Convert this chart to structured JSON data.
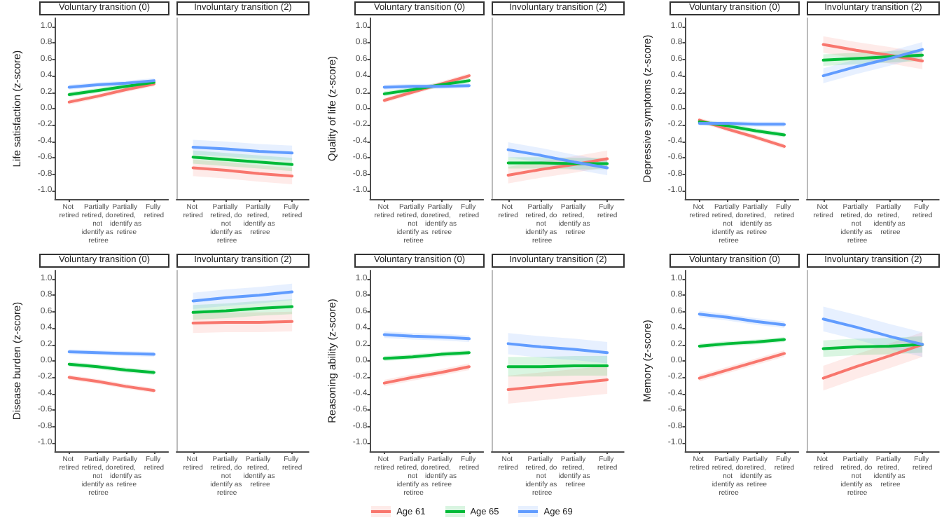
{
  "chart_data": [
    {
      "type": "line",
      "title": "Voluntary transition (0)",
      "ylabel": "Life satisfaction (z-score)",
      "legend": "bottom",
      "categories": [
        "Not retired",
        "Partially retired, do not identify as retiree",
        "Partially retired, identify as retiree",
        "Fully retired"
      ],
      "ylim": [
        -1.1,
        1.1
      ],
      "yticks": [
        {
          "value": -1,
          "label": "-1.0"
        },
        -0.8,
        -0.6,
        -0.4,
        -0.2,
        {
          "value": 0,
          "label": "0.0"
        },
        0.2,
        0.4,
        0.6,
        0.8,
        {
          "value": 1,
          "label": "1.0"
        }
      ],
      "series": [
        {
          "name": "Age 61",
          "color": "#f8766d",
          "values": [
            0.08,
            0.15,
            0.23,
            0.3
          ],
          "lower": [
            0.05,
            0.12,
            0.2,
            0.27
          ],
          "upper": [
            0.11,
            0.18,
            0.26,
            0.33
          ]
        },
        {
          "name": "Age 65",
          "color": "#00ba38",
          "values": [
            0.17,
            0.22,
            0.27,
            0.32
          ],
          "lower": [
            0.14,
            0.19,
            0.24,
            0.29
          ],
          "upper": [
            0.2,
            0.25,
            0.3,
            0.35
          ]
        },
        {
          "name": "Age 69",
          "color": "#619cff",
          "values": [
            0.26,
            0.29,
            0.31,
            0.34
          ],
          "lower": [
            0.23,
            0.26,
            0.28,
            0.31
          ],
          "upper": [
            0.29,
            0.32,
            0.34,
            0.37
          ]
        }
      ]
    },
    {
      "type": "line",
      "title": "Involuntary transition (2)",
      "tick_labels": "x",
      "categories": [
        "Not retired",
        "Partially retired, do not identify as retiree",
        "Partially retired, identify as retiree",
        "Fully retired"
      ],
      "ylim": [
        -1.1,
        1.1
      ],
      "yticks": [
        -1,
        -0.8,
        -0.6,
        -0.4,
        -0.2,
        0,
        0.2,
        0.4,
        0.6,
        0.8,
        1
      ],
      "series": [
        {
          "color": "#f8766d",
          "values": [
            -0.72,
            -0.75,
            -0.79,
            -0.82
          ],
          "lower": [
            -0.82,
            -0.85,
            -0.89,
            -0.92
          ],
          "upper": [
            -0.62,
            -0.65,
            -0.69,
            -0.72
          ]
        },
        {
          "color": "#00ba38",
          "values": [
            -0.59,
            -0.62,
            -0.65,
            -0.68
          ],
          "lower": [
            -0.67,
            -0.7,
            -0.73,
            -0.76
          ],
          "upper": [
            -0.51,
            -0.54,
            -0.57,
            -0.6
          ]
        },
        {
          "color": "#619cff",
          "values": [
            -0.47,
            -0.49,
            -0.52,
            -0.54
          ],
          "lower": [
            -0.56,
            -0.58,
            -0.61,
            -0.63
          ],
          "upper": [
            -0.38,
            -0.4,
            -0.43,
            -0.45
          ]
        }
      ]
    },
    {
      "type": "line",
      "title": "Voluntary transition (0)",
      "ylabel": "Quality of life (z-score)",
      "categories": [
        "Not retired",
        "Partially retired, do not identify as retiree",
        "Partially retired, identify as retiree",
        "Fully retired"
      ],
      "ylim": [
        -1.1,
        1.1
      ],
      "yticks": [
        {
          "value": -1,
          "label": "-1.0"
        },
        -0.8,
        -0.6,
        -0.4,
        -0.2,
        {
          "value": 0,
          "label": "0.0"
        },
        0.2,
        0.4,
        0.6,
        0.8,
        {
          "value": 1,
          "label": "1.0"
        }
      ],
      "series": [
        {
          "color": "#f8766d",
          "values": [
            0.1,
            0.2,
            0.3,
            0.4
          ],
          "lower": [
            0.07,
            0.17,
            0.27,
            0.37
          ],
          "upper": [
            0.13,
            0.23,
            0.33,
            0.43
          ]
        },
        {
          "color": "#00ba38",
          "values": [
            0.18,
            0.23,
            0.29,
            0.34
          ],
          "lower": [
            0.15,
            0.2,
            0.26,
            0.31
          ],
          "upper": [
            0.21,
            0.26,
            0.32,
            0.37
          ]
        },
        {
          "color": "#619cff",
          "values": [
            0.26,
            0.27,
            0.27,
            0.28
          ],
          "lower": [
            0.23,
            0.24,
            0.24,
            0.25
          ],
          "upper": [
            0.29,
            0.3,
            0.3,
            0.31
          ]
        }
      ]
    },
    {
      "type": "line",
      "title": "Involuntary transition (2)",
      "tick_labels": "x",
      "categories": [
        "Not retired",
        "Partially retired, do not identify as retiree",
        "Partially retired, identify as retiree",
        "Fully retired"
      ],
      "ylim": [
        -1.1,
        1.1
      ],
      "yticks": [
        -1,
        -0.8,
        -0.6,
        -0.4,
        -0.2,
        0,
        0.2,
        0.4,
        0.6,
        0.8,
        1
      ],
      "series": [
        {
          "color": "#f8766d",
          "values": [
            -0.81,
            -0.74,
            -0.68,
            -0.61
          ],
          "lower": [
            -0.91,
            -0.84,
            -0.78,
            -0.71
          ],
          "upper": [
            -0.71,
            -0.64,
            -0.58,
            -0.51
          ]
        },
        {
          "color": "#00ba38",
          "values": [
            -0.66,
            -0.66,
            -0.67,
            -0.67
          ],
          "lower": [
            -0.73,
            -0.73,
            -0.74,
            -0.74
          ],
          "upper": [
            -0.59,
            -0.59,
            -0.6,
            -0.6
          ]
        },
        {
          "color": "#619cff",
          "values": [
            -0.5,
            -0.57,
            -0.65,
            -0.72
          ],
          "lower": [
            -0.59,
            -0.66,
            -0.74,
            -0.81
          ],
          "upper": [
            -0.41,
            -0.48,
            -0.56,
            -0.63
          ]
        }
      ]
    },
    {
      "type": "line",
      "title": "Voluntary transition (0)",
      "ylabel": "Depressive symptoms (z-score)",
      "categories": [
        "Not retired",
        "Partially retired, do not identify as retiree",
        "Partially retired, identify as retiree",
        "Fully retired"
      ],
      "ylim": [
        -1.1,
        1.1
      ],
      "yticks": [
        {
          "value": -1,
          "label": "-1.0"
        },
        -0.8,
        -0.6,
        -0.4,
        -0.2,
        {
          "value": 0,
          "label": "0.0"
        },
        0.2,
        0.4,
        0.6,
        0.8,
        {
          "value": 1,
          "label": "1.0"
        }
      ],
      "series": [
        {
          "color": "#f8766d",
          "values": [
            -0.14,
            -0.25,
            -0.35,
            -0.46
          ],
          "lower": [
            -0.17,
            -0.28,
            -0.38,
            -0.49
          ],
          "upper": [
            -0.11,
            -0.22,
            -0.32,
            -0.43
          ]
        },
        {
          "color": "#00ba38",
          "values": [
            -0.16,
            -0.21,
            -0.27,
            -0.32
          ],
          "lower": [
            -0.19,
            -0.24,
            -0.3,
            -0.35
          ],
          "upper": [
            -0.13,
            -0.18,
            -0.24,
            -0.29
          ]
        },
        {
          "color": "#619cff",
          "values": [
            -0.18,
            -0.18,
            -0.19,
            -0.19
          ],
          "lower": [
            -0.21,
            -0.21,
            -0.22,
            -0.22
          ],
          "upper": [
            -0.15,
            -0.15,
            -0.16,
            -0.16
          ]
        }
      ]
    },
    {
      "type": "line",
      "title": "Involuntary transition (2)",
      "tick_labels": "x",
      "categories": [
        "Not retired",
        "Partially retired, do not identify as retiree",
        "Partially retired, identify as retiree",
        "Fully retired"
      ],
      "ylim": [
        -1.1,
        1.1
      ],
      "yticks": [
        -1,
        -0.8,
        -0.6,
        -0.4,
        -0.2,
        0,
        0.2,
        0.4,
        0.6,
        0.8,
        1
      ],
      "series": [
        {
          "color": "#f8766d",
          "values": [
            0.78,
            0.71,
            0.65,
            0.58
          ],
          "lower": [
            0.68,
            0.61,
            0.55,
            0.48
          ],
          "upper": [
            0.88,
            0.81,
            0.75,
            0.68
          ]
        },
        {
          "color": "#00ba38",
          "values": [
            0.59,
            0.61,
            0.63,
            0.65
          ],
          "lower": [
            0.52,
            0.54,
            0.56,
            0.58
          ],
          "upper": [
            0.66,
            0.68,
            0.7,
            0.72
          ]
        },
        {
          "color": "#619cff",
          "values": [
            0.4,
            0.51,
            0.61,
            0.72
          ],
          "lower": [
            0.31,
            0.42,
            0.52,
            0.63
          ],
          "upper": [
            0.49,
            0.6,
            0.7,
            0.81
          ]
        }
      ]
    },
    {
      "type": "line",
      "title": "Voluntary transition (0)",
      "ylabel": "Disease burden (z-score)",
      "categories": [
        "Not retired",
        "Partially retired, do not identify as retiree",
        "Partially retired, identify as retiree",
        "Fully retired"
      ],
      "ylim": [
        -1.1,
        1.1
      ],
      "yticks": [
        {
          "value": -1,
          "label": "-1.0"
        },
        -0.8,
        -0.6,
        -0.4,
        -0.2,
        {
          "value": 0,
          "label": "0.0"
        },
        0.2,
        0.4,
        0.6,
        0.8,
        {
          "value": 1,
          "label": "1.0"
        }
      ],
      "series": [
        {
          "color": "#f8766d",
          "values": [
            -0.2,
            -0.25,
            -0.31,
            -0.36
          ],
          "lower": [
            -0.23,
            -0.28,
            -0.34,
            -0.39
          ],
          "upper": [
            -0.17,
            -0.22,
            -0.28,
            -0.33
          ]
        },
        {
          "color": "#00ba38",
          "values": [
            -0.04,
            -0.07,
            -0.11,
            -0.14
          ],
          "lower": [
            -0.07,
            -0.1,
            -0.14,
            -0.17
          ],
          "upper": [
            -0.01,
            -0.04,
            -0.08,
            -0.11
          ]
        },
        {
          "color": "#619cff",
          "values": [
            0.11,
            0.1,
            0.09,
            0.08
          ],
          "lower": [
            0.08,
            0.07,
            0.06,
            0.05
          ],
          "upper": [
            0.14,
            0.13,
            0.12,
            0.11
          ]
        }
      ]
    },
    {
      "type": "line",
      "title": "Involuntary transition (2)",
      "tick_labels": "x",
      "categories": [
        "Not retired",
        "Partially retired, do not identify as retiree",
        "Partially retired, identify as retiree",
        "Fully retired"
      ],
      "ylim": [
        -1.1,
        1.1
      ],
      "yticks": [
        -1,
        -0.8,
        -0.6,
        -0.4,
        -0.2,
        0,
        0.2,
        0.4,
        0.6,
        0.8,
        1
      ],
      "series": [
        {
          "color": "#f8766d",
          "values": [
            0.46,
            0.47,
            0.47,
            0.48
          ],
          "lower": [
            0.34,
            0.35,
            0.35,
            0.36
          ],
          "upper": [
            0.58,
            0.59,
            0.59,
            0.6
          ]
        },
        {
          "color": "#00ba38",
          "values": [
            0.59,
            0.61,
            0.64,
            0.66
          ],
          "lower": [
            0.5,
            0.52,
            0.55,
            0.57
          ],
          "upper": [
            0.68,
            0.7,
            0.73,
            0.75
          ]
        },
        {
          "color": "#619cff",
          "values": [
            0.73,
            0.77,
            0.8,
            0.84
          ],
          "lower": [
            0.63,
            0.67,
            0.7,
            0.74
          ],
          "upper": [
            0.83,
            0.87,
            0.9,
            0.94
          ]
        }
      ]
    },
    {
      "type": "line",
      "title": "Voluntary transition (0)",
      "ylabel": "Reasoning ability (z-score)",
      "categories": [
        "Not retired",
        "Partially retired, do not identify as retiree",
        "Partially retired, identify as retiree",
        "Fully retired"
      ],
      "ylim": [
        -1.1,
        1.1
      ],
      "yticks": [
        {
          "value": -1,
          "label": "-1.0"
        },
        -0.8,
        -0.6,
        -0.4,
        -0.2,
        {
          "value": 0,
          "label": "0.0"
        },
        0.2,
        0.4,
        0.6,
        0.8,
        {
          "value": 1,
          "label": "1.0"
        }
      ],
      "series": [
        {
          "color": "#f8766d",
          "values": [
            -0.27,
            -0.2,
            -0.14,
            -0.07
          ],
          "lower": [
            -0.31,
            -0.24,
            -0.18,
            -0.11
          ],
          "upper": [
            -0.23,
            -0.16,
            -0.1,
            -0.03
          ]
        },
        {
          "color": "#00ba38",
          "values": [
            0.03,
            0.05,
            0.08,
            0.1
          ],
          "lower": [
            0.0,
            0.02,
            0.05,
            0.07
          ],
          "upper": [
            0.06,
            0.08,
            0.11,
            0.13
          ]
        },
        {
          "color": "#619cff",
          "values": [
            0.32,
            0.3,
            0.29,
            0.27
          ],
          "lower": [
            0.28,
            0.26,
            0.25,
            0.23
          ],
          "upper": [
            0.36,
            0.34,
            0.33,
            0.31
          ]
        }
      ]
    },
    {
      "type": "line",
      "title": "Involuntary transition (2)",
      "tick_labels": "x",
      "categories": [
        "Not retired",
        "Partially retired, do not identify as retiree",
        "Partially retired, identify as retiree",
        "Fully retired"
      ],
      "ylim": [
        -1.1,
        1.1
      ],
      "yticks": [
        -1,
        -0.8,
        -0.6,
        -0.4,
        -0.2,
        0,
        0.2,
        0.4,
        0.6,
        0.8,
        1
      ],
      "series": [
        {
          "color": "#f8766d",
          "values": [
            -0.35,
            -0.31,
            -0.27,
            -0.23
          ],
          "lower": [
            -0.52,
            -0.48,
            -0.44,
            -0.4
          ],
          "upper": [
            -0.18,
            -0.14,
            -0.1,
            -0.06
          ]
        },
        {
          "color": "#00ba38",
          "values": [
            -0.07,
            -0.07,
            -0.06,
            -0.06
          ],
          "lower": [
            -0.19,
            -0.19,
            -0.18,
            -0.18
          ],
          "upper": [
            0.05,
            0.05,
            0.06,
            0.06
          ]
        },
        {
          "color": "#619cff",
          "values": [
            0.21,
            0.17,
            0.14,
            0.1
          ],
          "lower": [
            0.08,
            0.04,
            0.01,
            -0.03
          ],
          "upper": [
            0.34,
            0.3,
            0.27,
            0.23
          ]
        }
      ]
    },
    {
      "type": "line",
      "title": "Voluntary transition (0)",
      "ylabel": "Memory (z-score)",
      "categories": [
        "Not retired",
        "Partially retired, do not identify as retiree",
        "Partially retired, identify as retiree",
        "Fully retired"
      ],
      "ylim": [
        -1.1,
        1.1
      ],
      "yticks": [
        {
          "value": -1,
          "label": "-1.0"
        },
        -0.8,
        -0.6,
        -0.4,
        -0.2,
        {
          "value": 0,
          "label": "0.0"
        },
        0.2,
        0.4,
        0.6,
        0.8,
        {
          "value": 1,
          "label": "1.0"
        }
      ],
      "series": [
        {
          "color": "#f8766d",
          "values": [
            -0.21,
            -0.11,
            -0.01,
            0.09
          ],
          "lower": [
            -0.25,
            -0.15,
            -0.05,
            0.05
          ],
          "upper": [
            -0.17,
            -0.07,
            0.03,
            0.13
          ]
        },
        {
          "color": "#00ba38",
          "values": [
            0.18,
            0.21,
            0.23,
            0.26
          ],
          "lower": [
            0.15,
            0.18,
            0.2,
            0.23
          ],
          "upper": [
            0.21,
            0.24,
            0.26,
            0.29
          ]
        },
        {
          "color": "#619cff",
          "values": [
            0.57,
            0.53,
            0.48,
            0.44
          ],
          "lower": [
            0.53,
            0.49,
            0.44,
            0.4
          ],
          "upper": [
            0.61,
            0.57,
            0.52,
            0.48
          ]
        }
      ]
    },
    {
      "type": "line",
      "title": "Involuntary transition (2)",
      "tick_labels": "x",
      "categories": [
        "Not retired",
        "Partially retired, do not identify as retiree",
        "Partially retired, identify as retiree",
        "Fully retired"
      ],
      "ylim": [
        -1.1,
        1.1
      ],
      "yticks": [
        -1,
        -0.8,
        -0.6,
        -0.4,
        -0.2,
        0,
        0.2,
        0.4,
        0.6,
        0.8,
        1
      ],
      "series": [
        {
          "color": "#f8766d",
          "values": [
            -0.21,
            -0.07,
            0.06,
            0.2
          ],
          "lower": [
            -0.36,
            -0.22,
            -0.09,
            0.05
          ],
          "upper": [
            -0.06,
            0.08,
            0.21,
            0.35
          ]
        },
        {
          "color": "#00ba38",
          "values": [
            0.15,
            0.17,
            0.18,
            0.2
          ],
          "lower": [
            0.05,
            0.07,
            0.08,
            0.1
          ],
          "upper": [
            0.25,
            0.27,
            0.28,
            0.3
          ]
        },
        {
          "color": "#619cff",
          "values": [
            0.51,
            0.41,
            0.3,
            0.2
          ],
          "lower": [
            0.36,
            0.26,
            0.15,
            0.05
          ],
          "upper": [
            0.66,
            0.56,
            0.45,
            0.35
          ]
        }
      ]
    }
  ]
}
